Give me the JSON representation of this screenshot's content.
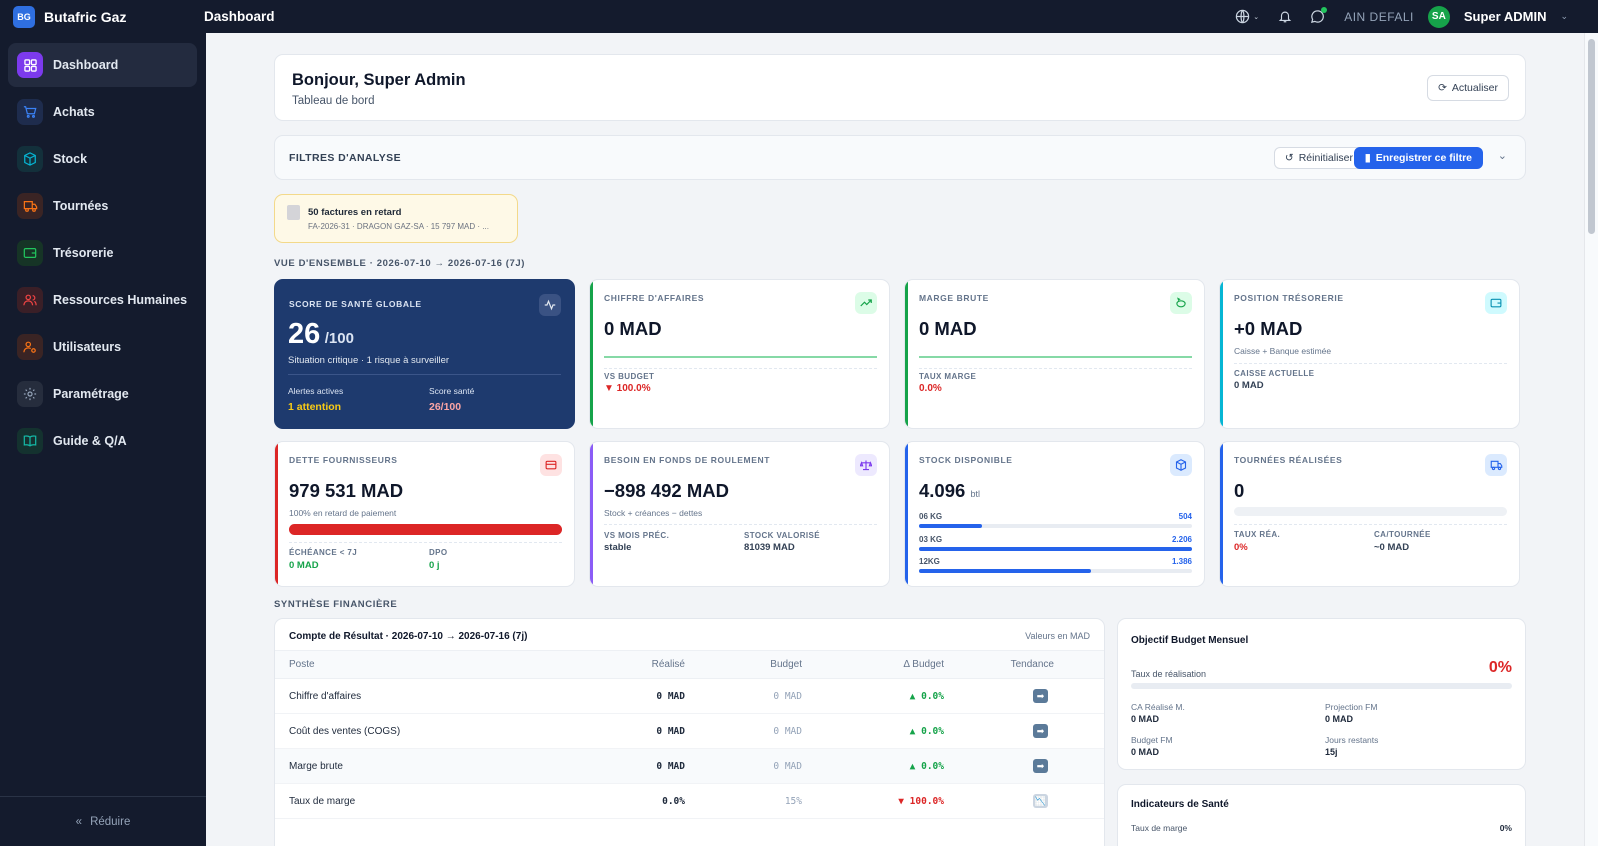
{
  "app": {
    "logo": "BG",
    "name": "Butafric Gaz",
    "page_title": "Dashboard"
  },
  "topbar": {
    "company": "AIN DEFALI",
    "user_initials": "SA",
    "user_name": "Super ADMIN"
  },
  "sidebar": {
    "items": [
      {
        "label": "Dashboard",
        "icon": "grid-icon",
        "color": "#8b5cf6"
      },
      {
        "label": "Achats",
        "icon": "cart-icon",
        "color": "#3b82f6"
      },
      {
        "label": "Stock",
        "icon": "box-icon",
        "color": "#06b6d4"
      },
      {
        "label": "Tournées",
        "icon": "truck-icon",
        "color": "#f97316"
      },
      {
        "label": "Trésorerie",
        "icon": "wallet-icon",
        "color": "#22c55e"
      },
      {
        "label": "Ressources Humaines",
        "icon": "users-icon",
        "color": "#ef4444"
      },
      {
        "label": "Utilisateurs",
        "icon": "user-cog-icon",
        "color": "#f97316"
      },
      {
        "label": "Paramétrage",
        "icon": "gear-icon",
        "color": "#94a3b8"
      },
      {
        "label": "Guide & Q/A",
        "icon": "book-icon",
        "color": "#14b8a6"
      }
    ],
    "reduce_label": "Réduire"
  },
  "greeting": {
    "title": "Bonjour, Super Admin",
    "subtitle": "Tableau de bord",
    "refresh_label": "Actualiser"
  },
  "filters": {
    "title": "FILTRES D'ANALYSE",
    "reset_label": "Réinitialiser",
    "save_label": "Enregistrer ce filtre"
  },
  "alert": {
    "title": "50 factures en retard",
    "detail": "FA-2026-31 · DRAGON GAZ-SA · 15 797 MAD · ..."
  },
  "overview_label": "VUE D'ENSEMBLE · 2026-07-10 → 2026-07-16 (7J)",
  "kpis": {
    "health": {
      "label": "SCORE DE SANTÉ GLOBALE",
      "score": "26",
      "max": "/100",
      "status": "Situation critique · 1 risque à surveiller",
      "alerts_label": "Alertes actives",
      "alerts_value": "1 attention",
      "score_label": "Score santé",
      "score_value": "26/100"
    },
    "ca": {
      "label": "CHIFFRE D'AFFAIRES",
      "value": "0 MAD",
      "sub_label": "VS BUDGET",
      "sub_value": "▼ 100.0%"
    },
    "marge": {
      "label": "MARGE BRUTE",
      "value": "0 MAD",
      "sub_label": "TAUX MARGE",
      "sub_value": "0.0%"
    },
    "treso": {
      "label": "POSITION TRÉSORERIE",
      "value": "+0 MAD",
      "caption": "Caisse + Banque estimée",
      "sub_label": "CAISSE ACTUELLE",
      "sub_value": "0 MAD"
    },
    "dette": {
      "label": "DETTE FOURNISSEURS",
      "value": "979 531 MAD",
      "caption": "100% en retard de paiement",
      "progress": 100,
      "a_label": "ÉCHÉANCE < 7J",
      "a_value": "0 MAD",
      "b_label": "DPO",
      "b_value": "0 j"
    },
    "bfr": {
      "label": "BESOIN EN FONDS DE ROULEMENT",
      "value": "−898 492 MAD",
      "caption": "Stock + créances − dettes",
      "a_label": "VS MOIS PRÉC.",
      "a_value": "stable",
      "b_label": "STOCK VALORISÉ",
      "b_value": "81039 MAD"
    },
    "stock": {
      "label": "STOCK DISPONIBLE",
      "value": "4.096",
      "unit": "btl",
      "rows": [
        {
          "name": "06 KG",
          "value": "504",
          "fraction": 0.23
        },
        {
          "name": "03 KG",
          "value": "2.206",
          "fraction": 1.0
        },
        {
          "name": "12KG",
          "value": "1.386",
          "fraction": 0.63
        }
      ]
    },
    "tournees": {
      "label": "TOURNÉES RÉALISÉES",
      "value": "0",
      "progress": 0,
      "a_label": "TAUX RÉA.",
      "a_value": "0%",
      "b_label": "CA/TOURNÉE",
      "b_value": "~0 MAD"
    }
  },
  "synthese_label": "SYNTHÈSE FINANCIÈRE",
  "pnl": {
    "title": "Compte de Résultat · 2026-07-10 → 2026-07-16 (7j)",
    "unit_note": "Valeurs en MAD",
    "columns": [
      "Poste",
      "Réalisé",
      "Budget",
      "Δ Budget",
      "Tendance"
    ],
    "rows": [
      {
        "poste": "Chiffre d'affaires",
        "realise": "0 MAD",
        "budget": "0 MAD",
        "delta": "▲ 0.0%",
        "delta_color": "#16a34a",
        "tend": "➡"
      },
      {
        "poste": "Coût des ventes (COGS)",
        "realise": "0 MAD",
        "budget": "0 MAD",
        "delta": "▲ 0.0%",
        "delta_color": "#16a34a",
        "tend": "➡"
      },
      {
        "poste": "Marge brute",
        "realise": "0 MAD",
        "budget": "0 MAD",
        "delta": "▲ 0.0%",
        "delta_color": "#16a34a",
        "tend": "➡"
      },
      {
        "poste": "Taux de marge",
        "realise": "0.0%",
        "budget": "15%",
        "delta": "▼ 100.0%",
        "delta_color": "#dc2626",
        "tend": "📉"
      }
    ]
  },
  "budget": {
    "title": "Objectif Budget Mensuel",
    "rate_label": "Taux de réalisation",
    "rate_value": "0%",
    "progress": 0,
    "items": [
      {
        "label": "CA Réalisé M.",
        "value": "0 MAD"
      },
      {
        "label": "Projection FM",
        "value": "0 MAD"
      },
      {
        "label": "Budget FM",
        "value": "0 MAD"
      },
      {
        "label": "Jours restants",
        "value": "15j"
      }
    ]
  },
  "health_ind": {
    "title": "Indicateurs de Santé",
    "row_label": "Taux de marge",
    "row_value": "0%"
  }
}
